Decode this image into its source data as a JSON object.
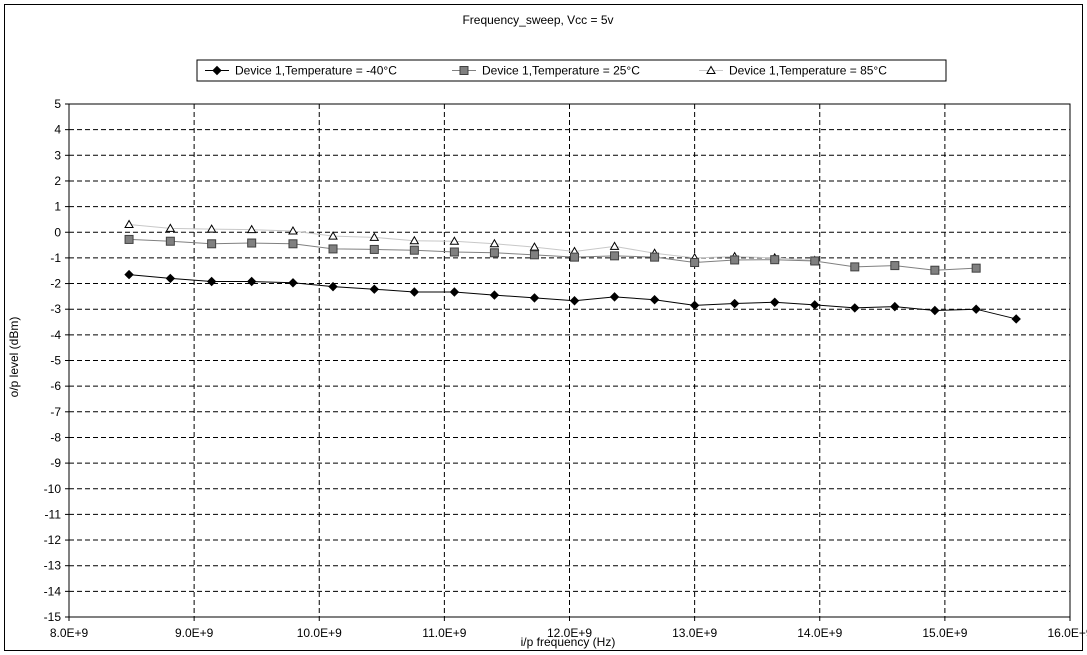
{
  "chart_data": {
    "type": "line",
    "title": "Frequency_sweep, Vcc = 5v",
    "xlabel": "i/p frequency (Hz)",
    "ylabel": "o/p level (dBm)",
    "xlim": [
      8000000000.0,
      16000000000.0
    ],
    "ylim": [
      -15,
      5
    ],
    "x_ticks": [
      8000000000.0,
      9000000000.0,
      10000000000.0,
      11000000000.0,
      12000000000.0,
      13000000000.0,
      14000000000.0,
      15000000000.0,
      16000000000.0
    ],
    "x_tick_labels": [
      "8.0E+9",
      "9.0E+9",
      "10.0E+9",
      "11.0E+9",
      "12.0E+9",
      "13.0E+9",
      "14.0E+9",
      "15.0E+9",
      "16.0E+9"
    ],
    "y_ticks": [
      5,
      4,
      3,
      2,
      1,
      0,
      -1,
      -2,
      -3,
      -4,
      -5,
      -6,
      -7,
      -8,
      -9,
      -10,
      -11,
      -12,
      -13,
      -14,
      -15
    ],
    "grid": true,
    "legend_position": "top",
    "series": [
      {
        "name": "Device 1,Temperature = -40°C",
        "color": "#000000",
        "marker": "diamond",
        "x": [
          8480000000.0,
          8810000000.0,
          9140000000.0,
          9460000000.0,
          9790000000.0,
          10110000000.0,
          10440000000.0,
          10760000000.0,
          11080000000.0,
          11400000000.0,
          11720000000.0,
          12040000000.0,
          12360000000.0,
          12680000000.0,
          13000000000.0,
          13320000000.0,
          13640000000.0,
          13960000000.0,
          14280000000.0,
          14600000000.0,
          14920000000.0,
          15250000000.0,
          15570000000.0
        ],
        "y": [
          -1.65,
          -1.8,
          -1.92,
          -1.92,
          -1.97,
          -2.12,
          -2.22,
          -2.33,
          -2.33,
          -2.45,
          -2.56,
          -2.67,
          -2.52,
          -2.63,
          -2.85,
          -2.78,
          -2.73,
          -2.83,
          -2.95,
          -2.9,
          -3.05,
          -3.0,
          -3.38
        ]
      },
      {
        "name": "Device 1,Temperature = 25°C",
        "color": "#808080",
        "marker": "square",
        "x": [
          8480000000.0,
          8810000000.0,
          9140000000.0,
          9460000000.0,
          9790000000.0,
          10110000000.0,
          10440000000.0,
          10760000000.0,
          11080000000.0,
          11400000000.0,
          11720000000.0,
          12040000000.0,
          12360000000.0,
          12680000000.0,
          13000000000.0,
          13320000000.0,
          13640000000.0,
          13960000000.0,
          14280000000.0,
          14600000000.0,
          14920000000.0,
          15250000000.0
        ],
        "y": [
          -0.28,
          -0.35,
          -0.45,
          -0.42,
          -0.45,
          -0.65,
          -0.67,
          -0.7,
          -0.77,
          -0.8,
          -0.88,
          -0.97,
          -0.92,
          -0.97,
          -1.18,
          -1.08,
          -1.07,
          -1.12,
          -1.35,
          -1.3,
          -1.48,
          -1.4
        ]
      },
      {
        "name": "Device 1,Temperature = 85°C",
        "color": "#c8c8c8",
        "marker": "triangle",
        "x": [
          8480000000.0,
          8810000000.0,
          9140000000.0,
          9460000000.0,
          9790000000.0,
          10110000000.0,
          10440000000.0,
          10760000000.0,
          11080000000.0,
          11400000000.0,
          11720000000.0,
          12040000000.0,
          12360000000.0,
          12680000000.0,
          13000000000.0,
          13320000000.0,
          13640000000.0,
          13960000000.0
        ],
        "y": [
          0.3,
          0.15,
          0.12,
          0.1,
          0.05,
          -0.15,
          -0.2,
          -0.33,
          -0.35,
          -0.45,
          -0.58,
          -0.75,
          -0.55,
          -0.82,
          -1.0,
          -0.95,
          -1.0,
          -1.1
        ]
      }
    ]
  }
}
